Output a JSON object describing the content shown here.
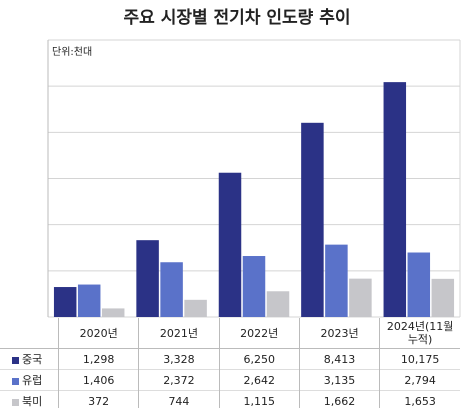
{
  "chart_data": {
    "type": "bar",
    "title": "주요 시장별 전기차 인도량 추이",
    "unit_label": "단위:천대",
    "categories": [
      "2020년",
      "2021년",
      "2022년",
      "2023년",
      "2024년(11월 누적)"
    ],
    "series": [
      {
        "name": "중국",
        "color": "#2b3286",
        "values": [
          1298,
          3328,
          6250,
          8413,
          10175
        ],
        "value_labels": [
          "1,298",
          "3,328",
          "6,250",
          "8,413",
          "10,175"
        ]
      },
      {
        "name": "유럽",
        "color": "#5a72c9",
        "values": [
          1406,
          2372,
          2642,
          3135,
          2794
        ],
        "value_labels": [
          "1,406",
          "2,372",
          "2,642",
          "3,135",
          "2,794"
        ]
      },
      {
        "name": "북미",
        "color": "#c6c6ca",
        "values": [
          372,
          744,
          1115,
          1662,
          1653
        ],
        "value_labels": [
          "372",
          "744",
          "1,115",
          "1,662",
          "1,653"
        ]
      }
    ],
    "ylim": [
      0,
      12000
    ],
    "yticks": [
      0,
      2000,
      4000,
      6000,
      8000,
      10000,
      12000
    ],
    "grid": true
  }
}
